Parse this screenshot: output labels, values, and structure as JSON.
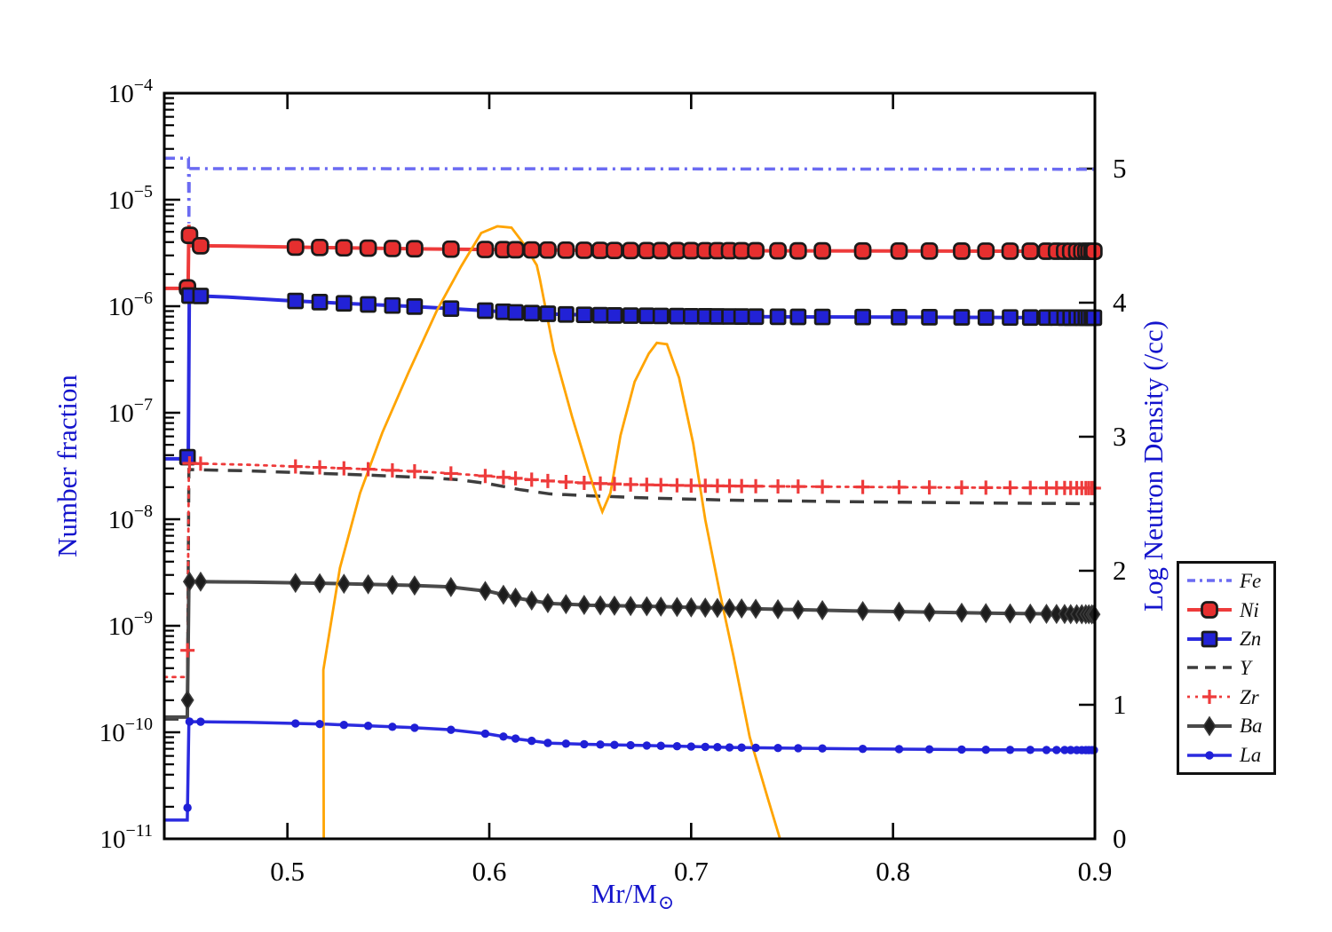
{
  "figure": {
    "background": "#ffffff",
    "axis_color": "#000000",
    "label_color": "#1414cc",
    "xlabel_main": "Mr/M",
    "xlabel_sub": "⊙",
    "ylabel_left": "Number fraction",
    "ylabel_right": "Log Neutron Density (/cc)"
  },
  "legend": {
    "entries": [
      "Fe",
      "Ni",
      "Zn",
      "Y",
      "Zr",
      "Ba",
      "La"
    ]
  },
  "chart_data": {
    "type": "line",
    "title": "",
    "grid": false,
    "legend_position": "right-outside",
    "x_axis": {
      "label": "Mr/M⊙",
      "min": 0.439,
      "max": 0.9,
      "ticks": [
        0.5,
        0.6,
        0.7,
        0.8,
        0.9
      ],
      "tick_labels": [
        "0.5",
        "0.6",
        "0.7",
        "0.8",
        "0.9"
      ]
    },
    "y_axis_left": {
      "label": "Number fraction",
      "scale": "log",
      "min": 1e-11,
      "max": 0.0001,
      "tick_exponents": [
        -4,
        -5,
        -6,
        -7,
        -8,
        -9,
        -10,
        -11
      ]
    },
    "y_axis_right": {
      "label": "Log Neutron Density (/cc)",
      "scale": "linear",
      "min": 0,
      "max": 5,
      "ticks": [
        0,
        1,
        2,
        3,
        4,
        5
      ],
      "tick_labels": [
        "0",
        "1",
        "2",
        "3",
        "4",
        "5"
      ]
    },
    "marker_xs": [
      0.4505,
      0.4515,
      0.457,
      0.504,
      0.516,
      0.528,
      0.54,
      0.552,
      0.563,
      0.581,
      0.598,
      0.607,
      0.613,
      0.621,
      0.629,
      0.638,
      0.647,
      0.655,
      0.662,
      0.67,
      0.678,
      0.685,
      0.693,
      0.7,
      0.707,
      0.713,
      0.719,
      0.725,
      0.732,
      0.743,
      0.753,
      0.765,
      0.785,
      0.803,
      0.818,
      0.834,
      0.846,
      0.858,
      0.868,
      0.876,
      0.881,
      0.885,
      0.888,
      0.891,
      0.8935,
      0.8955,
      0.897,
      0.8985,
      0.8995
    ],
    "series": [
      {
        "name": "Fe",
        "color": "#6b6bf2",
        "line": "dashdot",
        "width": 3.5,
        "marker": "none",
        "points": [
          [
            0.439,
            2.45e-05
          ],
          [
            0.4505,
            2.45e-05
          ],
          [
            0.451,
            2.45e-05
          ],
          [
            0.4512,
            6e-06
          ],
          [
            0.4514,
            1.96e-05
          ],
          [
            0.65,
            1.95e-05
          ],
          [
            0.9,
            1.93e-05
          ]
        ]
      },
      {
        "name": "Ni",
        "color": "#ee3b3b",
        "line": "solid",
        "width": 4,
        "marker": "rounded-square",
        "marker_fill": "#e62f2f",
        "points": [
          [
            0.439,
            1.47e-06
          ],
          [
            0.4502,
            1.47e-06
          ],
          [
            0.4508,
            1.5e-06
          ],
          [
            0.4512,
            5.8e-06
          ],
          [
            0.4518,
            3.7e-06
          ],
          [
            0.47,
            3.68e-06
          ],
          [
            0.52,
            3.55e-06
          ],
          [
            0.57,
            3.45e-06
          ],
          [
            0.62,
            3.38e-06
          ],
          [
            0.67,
            3.33e-06
          ],
          [
            0.72,
            3.32e-06
          ],
          [
            0.8,
            3.3e-06
          ],
          [
            0.9,
            3.28e-06
          ]
        ]
      },
      {
        "name": "Zn",
        "color": "#2b2bdf",
        "line": "solid",
        "width": 4,
        "marker": "square",
        "marker_fill": "#2222d6",
        "points": [
          [
            0.439,
            3.7e-08
          ],
          [
            0.4502,
            3.7e-08
          ],
          [
            0.4509,
            4e-08
          ],
          [
            0.4514,
            1.26e-06
          ],
          [
            0.47,
            1.22e-06
          ],
          [
            0.5,
            1.13e-06
          ],
          [
            0.53,
            1.06e-06
          ],
          [
            0.56,
            1e-06
          ],
          [
            0.585,
            9.4e-07
          ],
          [
            0.61,
            8.8e-07
          ],
          [
            0.635,
            8.4e-07
          ],
          [
            0.66,
            8.2e-07
          ],
          [
            0.7,
            8.05e-07
          ],
          [
            0.75,
            7.95e-07
          ],
          [
            0.8,
            7.9e-07
          ],
          [
            0.85,
            7.85e-07
          ],
          [
            0.9,
            7.8e-07
          ]
        ]
      },
      {
        "name": "Y",
        "color": "#3d3d3d",
        "line": "dashed",
        "width": 3.5,
        "marker": "none",
        "points": [
          [
            0.439,
            1.33e-10
          ],
          [
            0.4504,
            1.33e-10
          ],
          [
            0.4512,
            2.93e-08
          ],
          [
            0.48,
            2.85e-08
          ],
          [
            0.51,
            2.72e-08
          ],
          [
            0.54,
            2.6e-08
          ],
          [
            0.57,
            2.45e-08
          ],
          [
            0.585,
            2.35e-08
          ],
          [
            0.6,
            2.15e-08
          ],
          [
            0.615,
            1.9e-08
          ],
          [
            0.63,
            1.73e-08
          ],
          [
            0.65,
            1.66e-08
          ],
          [
            0.68,
            1.58e-08
          ],
          [
            0.72,
            1.51e-08
          ],
          [
            0.78,
            1.46e-08
          ],
          [
            0.85,
            1.42e-08
          ],
          [
            0.9,
            1.4e-08
          ]
        ]
      },
      {
        "name": "Zr",
        "color": "#ee3b3b",
        "line": "dotted",
        "width": 2.8,
        "marker": "plus",
        "points": [
          [
            0.439,
            3.3e-10
          ],
          [
            0.4504,
            3.3e-10
          ],
          [
            0.4512,
            3.35e-08
          ],
          [
            0.48,
            3.25e-08
          ],
          [
            0.51,
            3.1e-08
          ],
          [
            0.54,
            2.95e-08
          ],
          [
            0.57,
            2.78e-08
          ],
          [
            0.59,
            2.62e-08
          ],
          [
            0.61,
            2.45e-08
          ],
          [
            0.63,
            2.28e-08
          ],
          [
            0.65,
            2.18e-08
          ],
          [
            0.67,
            2.12e-08
          ],
          [
            0.7,
            2.07e-08
          ],
          [
            0.75,
            2.03e-08
          ],
          [
            0.82,
            1.99e-08
          ],
          [
            0.9,
            1.96e-08
          ]
        ]
      },
      {
        "name": "Ba",
        "color": "#4a4a4a",
        "line": "solid",
        "width": 4,
        "marker": "diamond",
        "marker_fill": "#1d1d1d",
        "points": [
          [
            0.439,
            1.39e-10
          ],
          [
            0.4504,
            1.39e-10
          ],
          [
            0.4512,
            2.6e-09
          ],
          [
            0.48,
            2.57e-09
          ],
          [
            0.52,
            2.5e-09
          ],
          [
            0.56,
            2.4e-09
          ],
          [
            0.58,
            2.32e-09
          ],
          [
            0.6,
            2.1e-09
          ],
          [
            0.615,
            1.8e-09
          ],
          [
            0.63,
            1.62e-09
          ],
          [
            0.65,
            1.56e-09
          ],
          [
            0.68,
            1.52e-09
          ],
          [
            0.72,
            1.46e-09
          ],
          [
            0.78,
            1.38e-09
          ],
          [
            0.85,
            1.31e-09
          ],
          [
            0.9,
            1.28e-09
          ]
        ]
      },
      {
        "name": "La",
        "color": "#2b2bdf",
        "line": "solid",
        "width": 3.5,
        "marker": "dot",
        "marker_fill": "#1f1fd6",
        "points": [
          [
            0.439,
            1.5e-11
          ],
          [
            0.4504,
            1.5e-11
          ],
          [
            0.4512,
            1.26e-10
          ],
          [
            0.48,
            1.24e-10
          ],
          [
            0.52,
            1.19e-10
          ],
          [
            0.56,
            1.11e-10
          ],
          [
            0.58,
            1.06e-10
          ],
          [
            0.6,
            9.6e-11
          ],
          [
            0.615,
            8.6e-11
          ],
          [
            0.63,
            7.9e-11
          ],
          [
            0.65,
            7.7e-11
          ],
          [
            0.68,
            7.5e-11
          ],
          [
            0.72,
            7.2e-11
          ],
          [
            0.78,
            7e-11
          ],
          [
            0.85,
            6.85e-11
          ],
          [
            0.9,
            6.8e-11
          ]
        ]
      }
    ],
    "neutron_density_curve": {
      "name": "neutron density",
      "axis": "right",
      "color": "#ffa400",
      "width": 2.8,
      "points": [
        [
          0.518,
          0.0
        ],
        [
          0.5178,
          1.26
        ],
        [
          0.526,
          2.02
        ],
        [
          0.536,
          2.58
        ],
        [
          0.547,
          3.03
        ],
        [
          0.56,
          3.48
        ],
        [
          0.574,
          3.94
        ],
        [
          0.586,
          4.27
        ],
        [
          0.596,
          4.52
        ],
        [
          0.604,
          4.57
        ],
        [
          0.611,
          4.56
        ],
        [
          0.617,
          4.44
        ],
        [
          0.6235,
          4.28
        ],
        [
          0.625,
          4.18
        ],
        [
          0.632,
          3.64
        ],
        [
          0.641,
          3.15
        ],
        [
          0.649,
          2.75
        ],
        [
          0.654,
          2.52
        ],
        [
          0.656,
          2.44
        ],
        [
          0.66,
          2.58
        ],
        [
          0.665,
          3.01
        ],
        [
          0.672,
          3.41
        ],
        [
          0.679,
          3.62
        ],
        [
          0.683,
          3.7
        ],
        [
          0.688,
          3.69
        ],
        [
          0.694,
          3.44
        ],
        [
          0.701,
          2.95
        ],
        [
          0.707,
          2.38
        ],
        [
          0.714,
          1.85
        ],
        [
          0.721,
          1.36
        ],
        [
          0.729,
          0.76
        ],
        [
          0.738,
          0.3
        ],
        [
          0.744,
          0.0
        ]
      ]
    }
  }
}
